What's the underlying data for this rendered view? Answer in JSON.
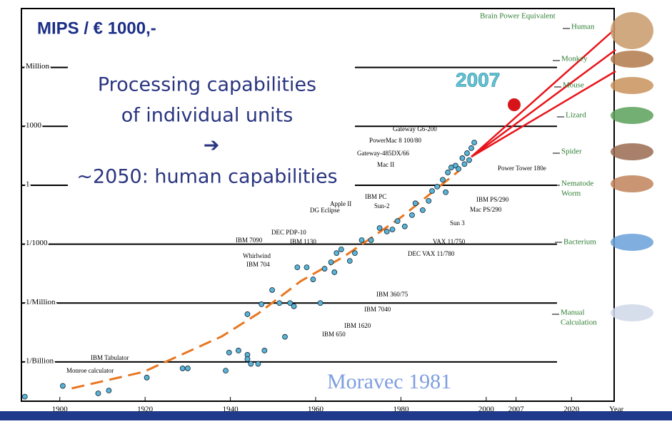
{
  "chart_data": {
    "type": "scatter",
    "title": "MIPS / € 1000,-",
    "subtitle_lines": [
      "Processing capabilities",
      "of individual units",
      "➔",
      "~2050: human capabilities"
    ],
    "highlight": "2007",
    "source": "Moravec 1981",
    "x_label": "Year",
    "log_y": true,
    "grid": true,
    "xlim": [
      1891,
      2030
    ],
    "xticks": [
      1900,
      1920,
      1940,
      1960,
      1980,
      2000,
      2007,
      2020
    ],
    "ylim": [
      1e-11,
      1000000000.0
    ],
    "yticks": [
      {
        "value": 1000000,
        "label": "Million"
      },
      1000,
      1,
      {
        "value": 0.001,
        "label": "1/1000"
      },
      {
        "value": 1e-06,
        "label": "1/Million"
      },
      {
        "value": 1e-09,
        "label": "1/Billion"
      }
    ],
    "series": [
      {
        "color": "#5ab4d6",
        "x": [
          1891.8,
          1900.7,
          1909,
          1911.5,
          1920.4,
          1928.8,
          1930,
          1938.9,
          1939.7,
          1941.9,
          1944,
          1944,
          1944.8,
          1946.5,
          1948,
          1944,
          1949.8,
          1947.3,
          1951.5,
          1952.8,
          1954,
          1954.9,
          1955.7,
          1957.9,
          1959.4,
          1961.1,
          1962.1,
          1963.6,
          1964.4,
          1964.9,
          1966,
          1968,
          1969.2,
          1970.8,
          1973,
          1975,
          1976.7,
          1978,
          1979.2,
          1980.9,
          1982.6,
          1983.4,
          1985.1,
          1986.5,
          1987.3,
          1988.5,
          1989.8,
          1990.5,
          1991,
          1991.8,
          1992.8,
          1993.5,
          1994.4,
          1994.9,
          1995.5,
          1996,
          1996.5,
          1997.2
        ],
        "values": [
          1.7e-11,
          6e-11,
          2.5e-11,
          3.5e-11,
          1.6e-10,
          4.7e-10,
          4.7e-10,
          3.6e-10,
          3e-09,
          3.8e-09,
          2.3e-09,
          1.4e-09,
          8e-10,
          8e-10,
          3.8e-09,
          2.7e-07,
          4.6e-06,
          8.7e-07,
          1e-06,
          1.9e-08,
          1e-06,
          6.8e-07,
          6.6e-05,
          6.6e-05,
          1.6e-05,
          1e-06,
          5.6e-05,
          0.00012,
          3.7e-05,
          0.00035,
          0.00054,
          0.00014,
          0.00035,
          0.0016,
          0.0016,
          0.0066,
          0.0044,
          0.0056,
          0.015,
          0.008,
          0.03,
          0.12,
          0.054,
          0.16,
          0.51,
          0.85,
          1.9,
          0.44,
          4.5,
          8,
          10,
          6.8,
          24,
          12,
          43,
          19,
          78,
          150
        ]
      }
    ],
    "trend": {
      "color": "#e87722",
      "x": [
        1902.8,
        1919.6,
        1938,
        1946.5,
        1956.5,
        1966.6,
        1980,
        1993.5
      ],
      "values": [
        4.5e-11,
        3.1e-10,
        2e-08,
        2.9e-07,
        1.3e-05,
        0.00023,
        0.023,
        5.2
      ]
    },
    "machines": [
      "Gateway G6-200",
      "PowerMac 8 100/80",
      "Gateway-485DX/66",
      "Mac II",
      "Power Tower 180e",
      "IBM PS/290",
      "Mac PS/290",
      "IBM PC",
      "Sun-2",
      "Apple II",
      "DG Eclipse",
      "Sun 3",
      "VAX 11/750",
      "DEC VAX 11/780",
      "DEC PDP-10",
      "IBM 1130",
      "IBM 7090",
      "Whirlwind",
      "IBM 704",
      "IBM 360/75",
      "IBM 7040",
      "IBM 1620",
      "IBM 650",
      "IBM Tabulator",
      "Monroe calculator"
    ],
    "brain_title": "Brain Power Equivalent",
    "brain_levels": [
      [
        "Human"
      ],
      [
        "Monkey"
      ],
      [
        "Mouse"
      ],
      [
        "Lizard"
      ],
      [
        "Spider"
      ],
      [
        "Nematode",
        "Worm"
      ],
      [
        "Bacterium"
      ],
      [
        "Manual",
        "Calculation"
      ]
    ]
  }
}
